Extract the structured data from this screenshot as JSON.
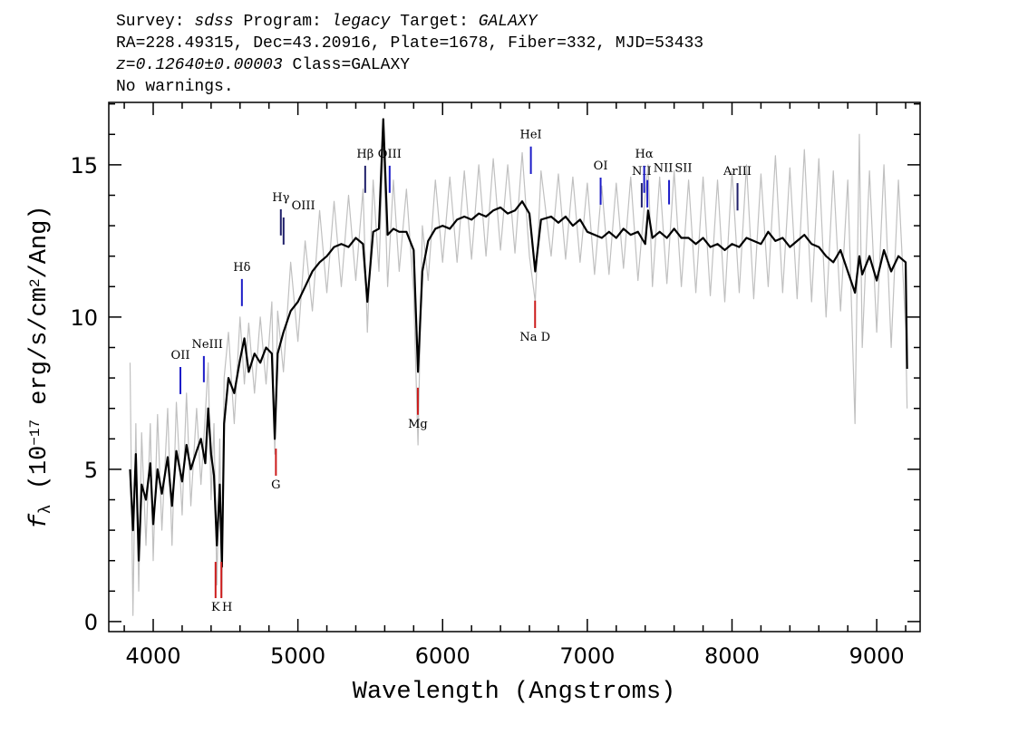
{
  "chart_data": {
    "type": "line",
    "header": [
      [
        {
          "text": "Survey: "
        },
        {
          "text": "sdss",
          "italic": true
        },
        {
          "text": " Program: "
        },
        {
          "text": "legacy",
          "italic": true
        },
        {
          "text": " Target: "
        },
        {
          "text": "GALAXY",
          "italic": true
        }
      ],
      [
        {
          "text": "RA=228.49315, Dec=43.20916, Plate=1678, Fiber=332, MJD=53433"
        }
      ],
      [
        {
          "text": "z=0.12640±0.00003",
          "italic": true
        },
        {
          "text": " Class=GALAXY"
        }
      ],
      [
        {
          "text": "No warnings."
        }
      ]
    ],
    "xlabel": "Wavelength (Angstroms)",
    "ylabel": [
      {
        "text": "f",
        "italic": true
      },
      {
        "text": "λ",
        "sub": true
      },
      {
        "text": " (10"
      },
      {
        "text": "−17",
        "sup": true
      },
      {
        "text": " erg/s/cm"
      },
      {
        "text": "2",
        "sup": true
      },
      {
        "text": "/Ang)"
      }
    ],
    "xlim": [
      3693,
      9300
    ],
    "ylim": [
      -0.33,
      17.05
    ],
    "xticks": [
      4000,
      5000,
      6000,
      7000,
      8000,
      9000
    ],
    "yticks": [
      0,
      5,
      10,
      15
    ],
    "xminor_ticks": [
      3800,
      4200,
      4400,
      4600,
      4800,
      5200,
      5400,
      5600,
      5800,
      6200,
      6400,
      6600,
      6800,
      7200,
      7400,
      7600,
      7800,
      8200,
      8400,
      8600,
      8800,
      9200
    ],
    "yminor_ticks": [
      1,
      2,
      3,
      4,
      6,
      7,
      8,
      9,
      11,
      12,
      13,
      14,
      16,
      17
    ],
    "x": [
      3840,
      3860,
      3880,
      3900,
      3920,
      3950,
      3980,
      4000,
      4030,
      4060,
      4100,
      4130,
      4160,
      4200,
      4230,
      4260,
      4300,
      4330,
      4360,
      4380,
      4400,
      4420,
      4440,
      4460,
      4475,
      4490,
      4520,
      4560,
      4600,
      4630,
      4660,
      4700,
      4740,
      4780,
      4820,
      4840,
      4860,
      4900,
      4950,
      5000,
      5050,
      5100,
      5150,
      5200,
      5250,
      5300,
      5350,
      5400,
      5450,
      5480,
      5520,
      5560,
      5590,
      5620,
      5660,
      5700,
      5750,
      5800,
      5830,
      5860,
      5900,
      5950,
      6000,
      6050,
      6100,
      6150,
      6200,
      6250,
      6300,
      6350,
      6400,
      6450,
      6500,
      6550,
      6600,
      6640,
      6680,
      6750,
      6800,
      6850,
      6900,
      6950,
      7000,
      7050,
      7100,
      7150,
      7200,
      7250,
      7300,
      7350,
      7400,
      7420,
      7450,
      7500,
      7550,
      7600,
      7650,
      7700,
      7750,
      7800,
      7850,
      7900,
      7950,
      8000,
      8050,
      8100,
      8150,
      8200,
      8250,
      8300,
      8350,
      8400,
      8450,
      8500,
      8550,
      8600,
      8650,
      8700,
      8750,
      8800,
      8850,
      8880,
      8900,
      8950,
      9000,
      9050,
      9100,
      9150,
      9200,
      9210
    ],
    "series": [
      {
        "color": "#c0c0c0",
        "width": 1.2,
        "values": [
          8.5,
          0.2,
          6.5,
          1.0,
          6.2,
          2.5,
          6.5,
          2.0,
          6.8,
          3.0,
          7.0,
          2.5,
          7.2,
          3.5,
          7.5,
          3.8,
          7.0,
          4.5,
          6.8,
          8.5,
          4.0,
          6.5,
          1.2,
          6.0,
          0.8,
          8.0,
          9.5,
          6.5,
          10.0,
          7.8,
          9.8,
          7.5,
          10.0,
          7.8,
          10.5,
          5.5,
          10.2,
          8.2,
          11.8,
          9.2,
          12.5,
          10.2,
          13.5,
          10.8,
          13.8,
          11.0,
          14.0,
          11.2,
          14.2,
          9.5,
          14.5,
          11.5,
          15.8,
          11.0,
          14.5,
          11.5,
          14.2,
          10.8,
          5.8,
          13.0,
          11.2,
          14.5,
          11.8,
          14.6,
          11.8,
          14.8,
          11.9,
          15.0,
          12.0,
          15.2,
          12.2,
          15.0,
          12.1,
          15.4,
          12.0,
          10.5,
          14.8,
          12.0,
          14.7,
          11.9,
          14.6,
          11.8,
          14.4,
          11.4,
          14.3,
          11.4,
          14.4,
          11.6,
          14.6,
          11.2,
          14.0,
          15.0,
          11.0,
          14.6,
          11.1,
          14.8,
          11.0,
          14.5,
          10.8,
          14.6,
          10.7,
          14.5,
          10.5,
          14.8,
          10.8,
          15.0,
          10.6,
          14.7,
          11.0,
          15.3,
          10.8,
          14.9,
          10.6,
          15.5,
          10.5,
          15.2,
          10.0,
          14.8,
          10.2,
          14.5,
          6.5,
          16.0,
          9.0,
          14.8,
          9.5,
          15.0,
          9.0,
          14.5,
          9.6,
          7.0
        ]
      },
      {
        "color": "#000000",
        "width": 2.2,
        "values": [
          5.0,
          3.0,
          5.5,
          2.0,
          4.5,
          4.0,
          5.2,
          3.2,
          5.0,
          4.2,
          5.4,
          3.8,
          5.6,
          4.6,
          5.8,
          5.0,
          5.6,
          6.0,
          5.2,
          7.0,
          5.5,
          4.8,
          2.5,
          4.5,
          1.8,
          6.5,
          8.0,
          7.5,
          8.6,
          9.3,
          8.2,
          8.8,
          8.5,
          9.0,
          8.8,
          6.0,
          8.8,
          9.5,
          10.2,
          10.5,
          11.0,
          11.5,
          11.8,
          12.0,
          12.3,
          12.4,
          12.3,
          12.6,
          12.4,
          10.5,
          12.8,
          12.9,
          16.5,
          12.7,
          12.9,
          12.8,
          12.8,
          12.2,
          8.2,
          11.5,
          12.5,
          12.9,
          13.0,
          12.9,
          13.2,
          13.3,
          13.2,
          13.4,
          13.3,
          13.5,
          13.6,
          13.4,
          13.5,
          13.8,
          13.4,
          11.5,
          13.2,
          13.3,
          13.1,
          13.3,
          13.0,
          13.2,
          12.8,
          12.7,
          12.6,
          12.8,
          12.6,
          12.9,
          12.7,
          12.8,
          12.4,
          13.5,
          12.6,
          12.8,
          12.6,
          12.9,
          12.6,
          12.6,
          12.4,
          12.6,
          12.3,
          12.4,
          12.2,
          12.4,
          12.3,
          12.6,
          12.5,
          12.4,
          12.8,
          12.5,
          12.6,
          12.3,
          12.5,
          12.7,
          12.4,
          12.3,
          12.0,
          11.8,
          12.2,
          11.5,
          10.8,
          12.0,
          11.4,
          12.0,
          11.2,
          12.2,
          11.5,
          12.0,
          11.8,
          8.3
        ]
      }
    ],
    "lines": [
      {
        "label": "OII",
        "wavelength": 4188,
        "top": 8.36,
        "bottom": 7.47,
        "color": "#1c1cc8",
        "kind": "emission"
      },
      {
        "label": "NeIII",
        "wavelength": 4350,
        "top": 8.72,
        "bottom": 7.86,
        "color": "#1c1cc8",
        "kind": "emission"
      },
      {
        "label": "Hδ",
        "wavelength": 4613,
        "top": 11.25,
        "bottom": 10.36,
        "color": "#1c1cc8",
        "kind": "emission"
      },
      {
        "label": "Hγ",
        "wavelength": 4882,
        "top": 13.54,
        "bottom": 12.68,
        "color": "#20206a",
        "kind": "emission"
      },
      {
        "label": "OIII",
        "wavelength": 4901,
        "top": 13.27,
        "bottom": 12.38,
        "color": "#20206a",
        "kind": "emission"
      },
      {
        "label": "Hβ",
        "wavelength": 5465,
        "top": 14.97,
        "bottom": 14.08,
        "color": "#20206a",
        "kind": "emission"
      },
      {
        "label": "OIII",
        "wavelength": 5634,
        "top": 14.97,
        "bottom": 14.08,
        "color": "#1c1cc8",
        "kind": "emission"
      },
      {
        "label": "HeI",
        "wavelength": 6610,
        "top": 15.6,
        "bottom": 14.7,
        "color": "#1c1cc8",
        "kind": "emission"
      },
      {
        "label": "OI",
        "wavelength": 7092,
        "top": 14.58,
        "bottom": 13.69,
        "color": "#1c1cc8",
        "kind": "emission"
      },
      {
        "label": "NII",
        "wavelength": 7376,
        "top": 14.4,
        "bottom": 13.6,
        "color": "#20206a",
        "kind": "emission"
      },
      {
        "label": "Hα",
        "wavelength": 7393,
        "top": 14.97,
        "bottom": 14.08,
        "color": "#1c1cc8",
        "kind": "emission"
      },
      {
        "label": "NII",
        "wavelength": 7415,
        "top": 14.5,
        "bottom": 13.6,
        "color": "#1c1cc8",
        "kind": "emission"
      },
      {
        "label": "SII",
        "wavelength": 7565,
        "top": 14.5,
        "bottom": 13.7,
        "color": "#1c1cc8",
        "kind": "emission"
      },
      {
        "label": "ArIII",
        "wavelength": 8038,
        "top": 14.4,
        "bottom": 13.5,
        "color": "#20206a",
        "kind": "emission"
      },
      {
        "label": "K",
        "wavelength": 4431,
        "top": 1.96,
        "bottom": 0.77,
        "color": "#cc1c1c",
        "kind": "absorption"
      },
      {
        "label": "H",
        "wavelength": 4471,
        "top": 1.96,
        "bottom": 0.77,
        "color": "#cc1c1c",
        "kind": "absorption"
      },
      {
        "label": "G",
        "wavelength": 4848,
        "top": 5.68,
        "bottom": 4.79,
        "color": "#cc1c1c",
        "kind": "absorption"
      },
      {
        "label": "Mg",
        "wavelength": 5829,
        "top": 7.68,
        "bottom": 6.79,
        "color": "#cc1c1c",
        "kind": "absorption"
      },
      {
        "label": "Na D",
        "wavelength": 6639,
        "top": 10.54,
        "bottom": 9.64,
        "color": "#cc1c1c",
        "kind": "absorption"
      }
    ]
  }
}
